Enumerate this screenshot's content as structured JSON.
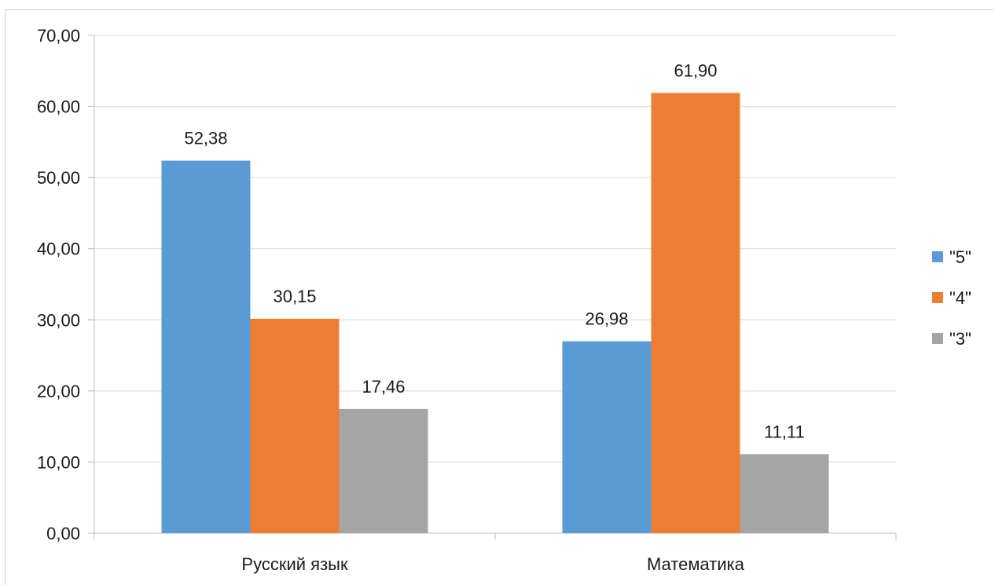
{
  "chart_data": {
    "type": "bar",
    "categories": [
      "Русский язык",
      "Математика"
    ],
    "series": [
      {
        "name": "\"5\"",
        "values": [
          52.38,
          26.98
        ],
        "color": "#5b9bd5"
      },
      {
        "name": "\"4\"",
        "values": [
          30.15,
          61.9
        ],
        "color": "#ed7d31"
      },
      {
        "name": "\"3\"",
        "values": [
          17.46,
          11.11
        ],
        "color": "#a5a5a5"
      }
    ],
    "value_labels": [
      [
        "52,38",
        "26,98"
      ],
      [
        "30,15",
        "61,90"
      ],
      [
        "17,46",
        "11,11"
      ]
    ],
    "y_ticks": [
      "0,00",
      "10,00",
      "20,00",
      "30,00",
      "40,00",
      "50,00",
      "60,00",
      "70,00"
    ],
    "ylim": [
      0,
      70
    ],
    "grid": true,
    "legend_position": "right",
    "title": "",
    "xlabel": "",
    "ylabel": ""
  }
}
